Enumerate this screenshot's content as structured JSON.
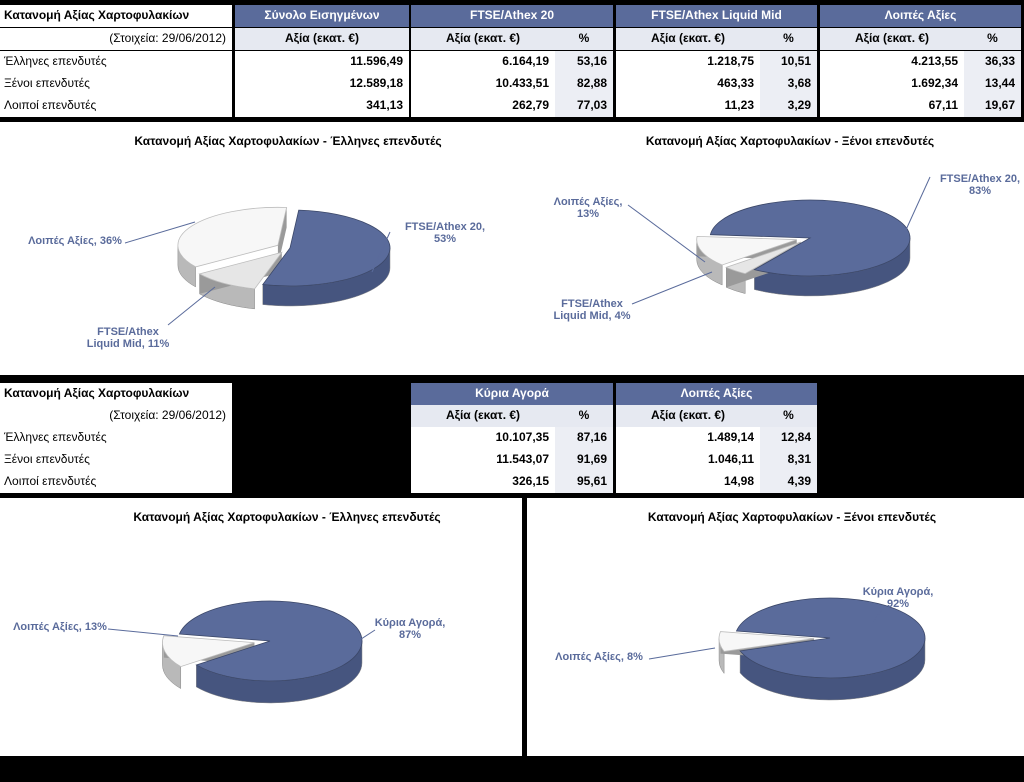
{
  "table1": {
    "title": "Κατανομή Αξίας Χαρτοφυλακίων",
    "date": "(Στοιχεία: 29/06/2012)",
    "groups": [
      "Σύνολο Εισηγμένων",
      "FTSE/Athex 20",
      "FTSE/Athex Liquid Mid",
      "Λοιπές Αξίες"
    ],
    "value_header": "Αξία (εκατ. €)",
    "pct_header": "%",
    "rows": [
      {
        "label": "Έλληνες επενδυτές",
        "total": "11.596,49",
        "ftse20": "6.164,19",
        "ftse20_pct": "53,16",
        "mid": "1.218,75",
        "mid_pct": "10,51",
        "other": "4.213,55",
        "other_pct": "36,33"
      },
      {
        "label": "Ξένοι επενδυτές",
        "total": "12.589,18",
        "ftse20": "10.433,51",
        "ftse20_pct": "82,88",
        "mid": "463,33",
        "mid_pct": "3,68",
        "other": "1.692,34",
        "other_pct": "13,44"
      },
      {
        "label": "Λοιποί επενδυτές",
        "total": "341,13",
        "ftse20": "262,79",
        "ftse20_pct": "77,03",
        "mid": "11,23",
        "mid_pct": "3,29",
        "other": "67,11",
        "other_pct": "19,67"
      }
    ]
  },
  "table2": {
    "title": "Κατανομή Αξίας Χαρτοφυλακίων",
    "date": "(Στοιχεία: 29/06/2012)",
    "groups": [
      "Κύρια Αγορά",
      "Λοιπές Αξίες"
    ],
    "value_header": "Αξία (εκατ. €)",
    "pct_header": "%",
    "rows": [
      {
        "label": "Έλληνες επενδυτές",
        "main": "10.107,35",
        "main_pct": "87,16",
        "other": "1.489,14",
        "other_pct": "12,84"
      },
      {
        "label": "Ξένοι επενδυτές",
        "main": "11.543,07",
        "main_pct": "91,69",
        "other": "1.046,11",
        "other_pct": "8,31"
      },
      {
        "label": "Λοιποί επενδυτές",
        "main": "326,15",
        "main_pct": "95,61",
        "other": "14,98",
        "other_pct": "4,39"
      }
    ]
  },
  "colors": {
    "blue": "#5a6b9b",
    "blue_dark": "#46557f",
    "white_slice": "#f7f7f7",
    "grey_slice": "#e6e6e6",
    "line": "#5a6b9b"
  },
  "chart_data": [
    {
      "type": "pie",
      "title": "Κατανομή Αξίας Χαρτοφυλακίων - Έλληνες επενδυτές",
      "categories": [
        "FTSE/Athex 20",
        "FTSE/Athex Liquid Mid",
        "Λοιπές Αξίες"
      ],
      "values": [
        53,
        11,
        36
      ],
      "labels": [
        "FTSE/Athex 20, 53%",
        "FTSE/Athex Liquid Mid, 11%",
        "Λοιπές Αξίες, 36%"
      ]
    },
    {
      "type": "pie",
      "title": "Κατανομή Αξίας Χαρτοφυλακίων - Ξένοι επενδυτές",
      "categories": [
        "FTSE/Athex 20",
        "FTSE/Athex Liquid Mid",
        "Λοιπές Αξίες"
      ],
      "values": [
        83,
        4,
        13
      ],
      "labels": [
        "FTSE/Athex 20, 83%",
        "FTSE/Athex Liquid Mid, 4%",
        "Λοιπές Αξίες, 13%"
      ]
    },
    {
      "type": "pie",
      "title": "Κατανομή Αξίας Χαρτοφυλακίων - Έλληνες επενδυτές",
      "categories": [
        "Κύρια Αγορά",
        "Λοιπές Αξίες"
      ],
      "values": [
        87,
        13
      ],
      "labels": [
        "Κύρια Αγορά, 87%",
        "Λοιπές Αξίες, 13%"
      ]
    },
    {
      "type": "pie",
      "title": "Κατανομή Αξίας Χαρτοφυλακίων - Ξένοι επενδυτές",
      "categories": [
        "Κύρια Αγορά",
        "Λοιπές Αξίες"
      ],
      "values": [
        92,
        8
      ],
      "labels": [
        "Κύρια Αγορά, 92%",
        "Λοιπές Αξίες, 8%"
      ]
    }
  ]
}
